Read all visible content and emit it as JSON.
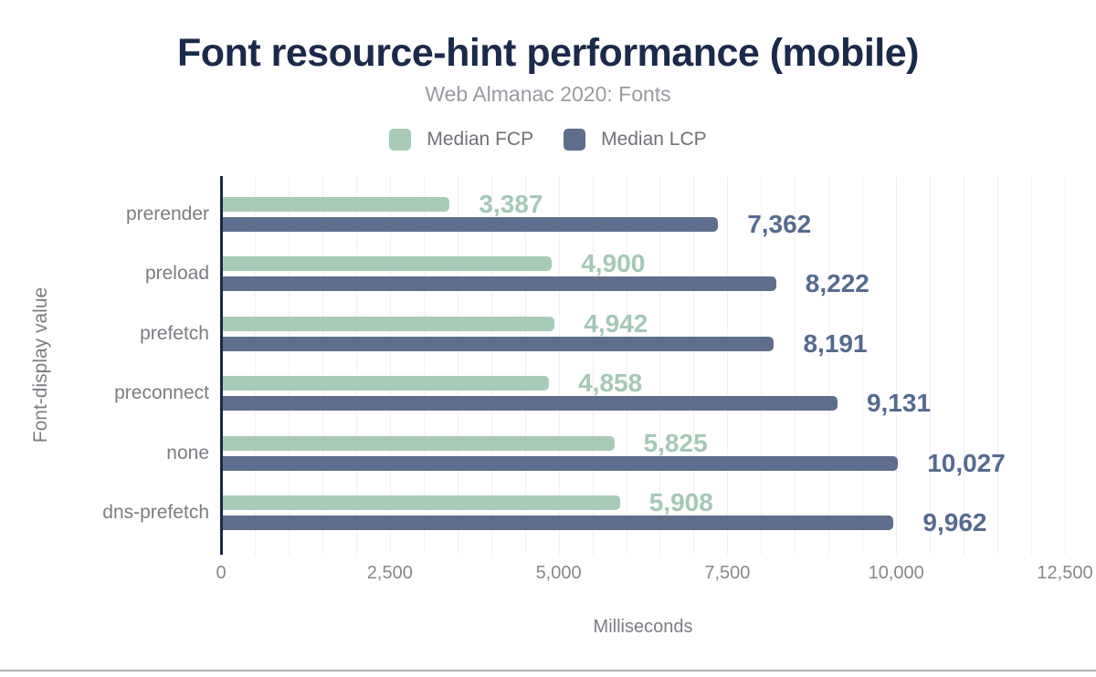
{
  "chart_data": {
    "type": "bar",
    "orientation": "horizontal",
    "title": "Font resource-hint performance (mobile)",
    "subtitle": "Web Almanac 2020: Fonts",
    "xlabel": "Milliseconds",
    "ylabel": "Font-display value",
    "categories": [
      "prerender",
      "preload",
      "prefetch",
      "preconnect",
      "none",
      "dns-prefetch"
    ],
    "series": [
      {
        "name": "Median FCP",
        "color": "#a8cbb8",
        "label_color": "#a4c9b6",
        "values": [
          3387,
          4900,
          4942,
          4858,
          5825,
          5908
        ]
      },
      {
        "name": "Median LCP",
        "color": "#5f6e8c",
        "label_color": "#556b8f",
        "values": [
          7362,
          8222,
          8191,
          9131,
          10027,
          9962
        ]
      }
    ],
    "value_labels": {
      "Median FCP": [
        "3,387",
        "4,900",
        "4,942",
        "4,858",
        "5,825",
        "5,908"
      ],
      "Median LCP": [
        "7,362",
        "8,222",
        "8,191",
        "9,131",
        "10,027",
        "9,962"
      ]
    },
    "xlim": [
      0,
      12500
    ],
    "xticks": [
      0,
      2500,
      5000,
      7500,
      10000,
      12500
    ],
    "xtick_labels": [
      "0",
      "2,500",
      "5,000",
      "7,500",
      "10,000",
      "12,500"
    ],
    "grid": true,
    "grid_interval": 500,
    "legend_position": "top",
    "colors": {
      "background": "#ffffff",
      "title": "#1b2a4a",
      "subtitle": "#989ba1",
      "axis_line": "#1b2a44",
      "gridline": "#f1f1f3",
      "tick_label": "#85888d",
      "category_label": "#7a7d82",
      "axis_title": "#7a7d82",
      "legend_label": "#6f7277",
      "bottom_divider": "#aeaeb4"
    }
  }
}
